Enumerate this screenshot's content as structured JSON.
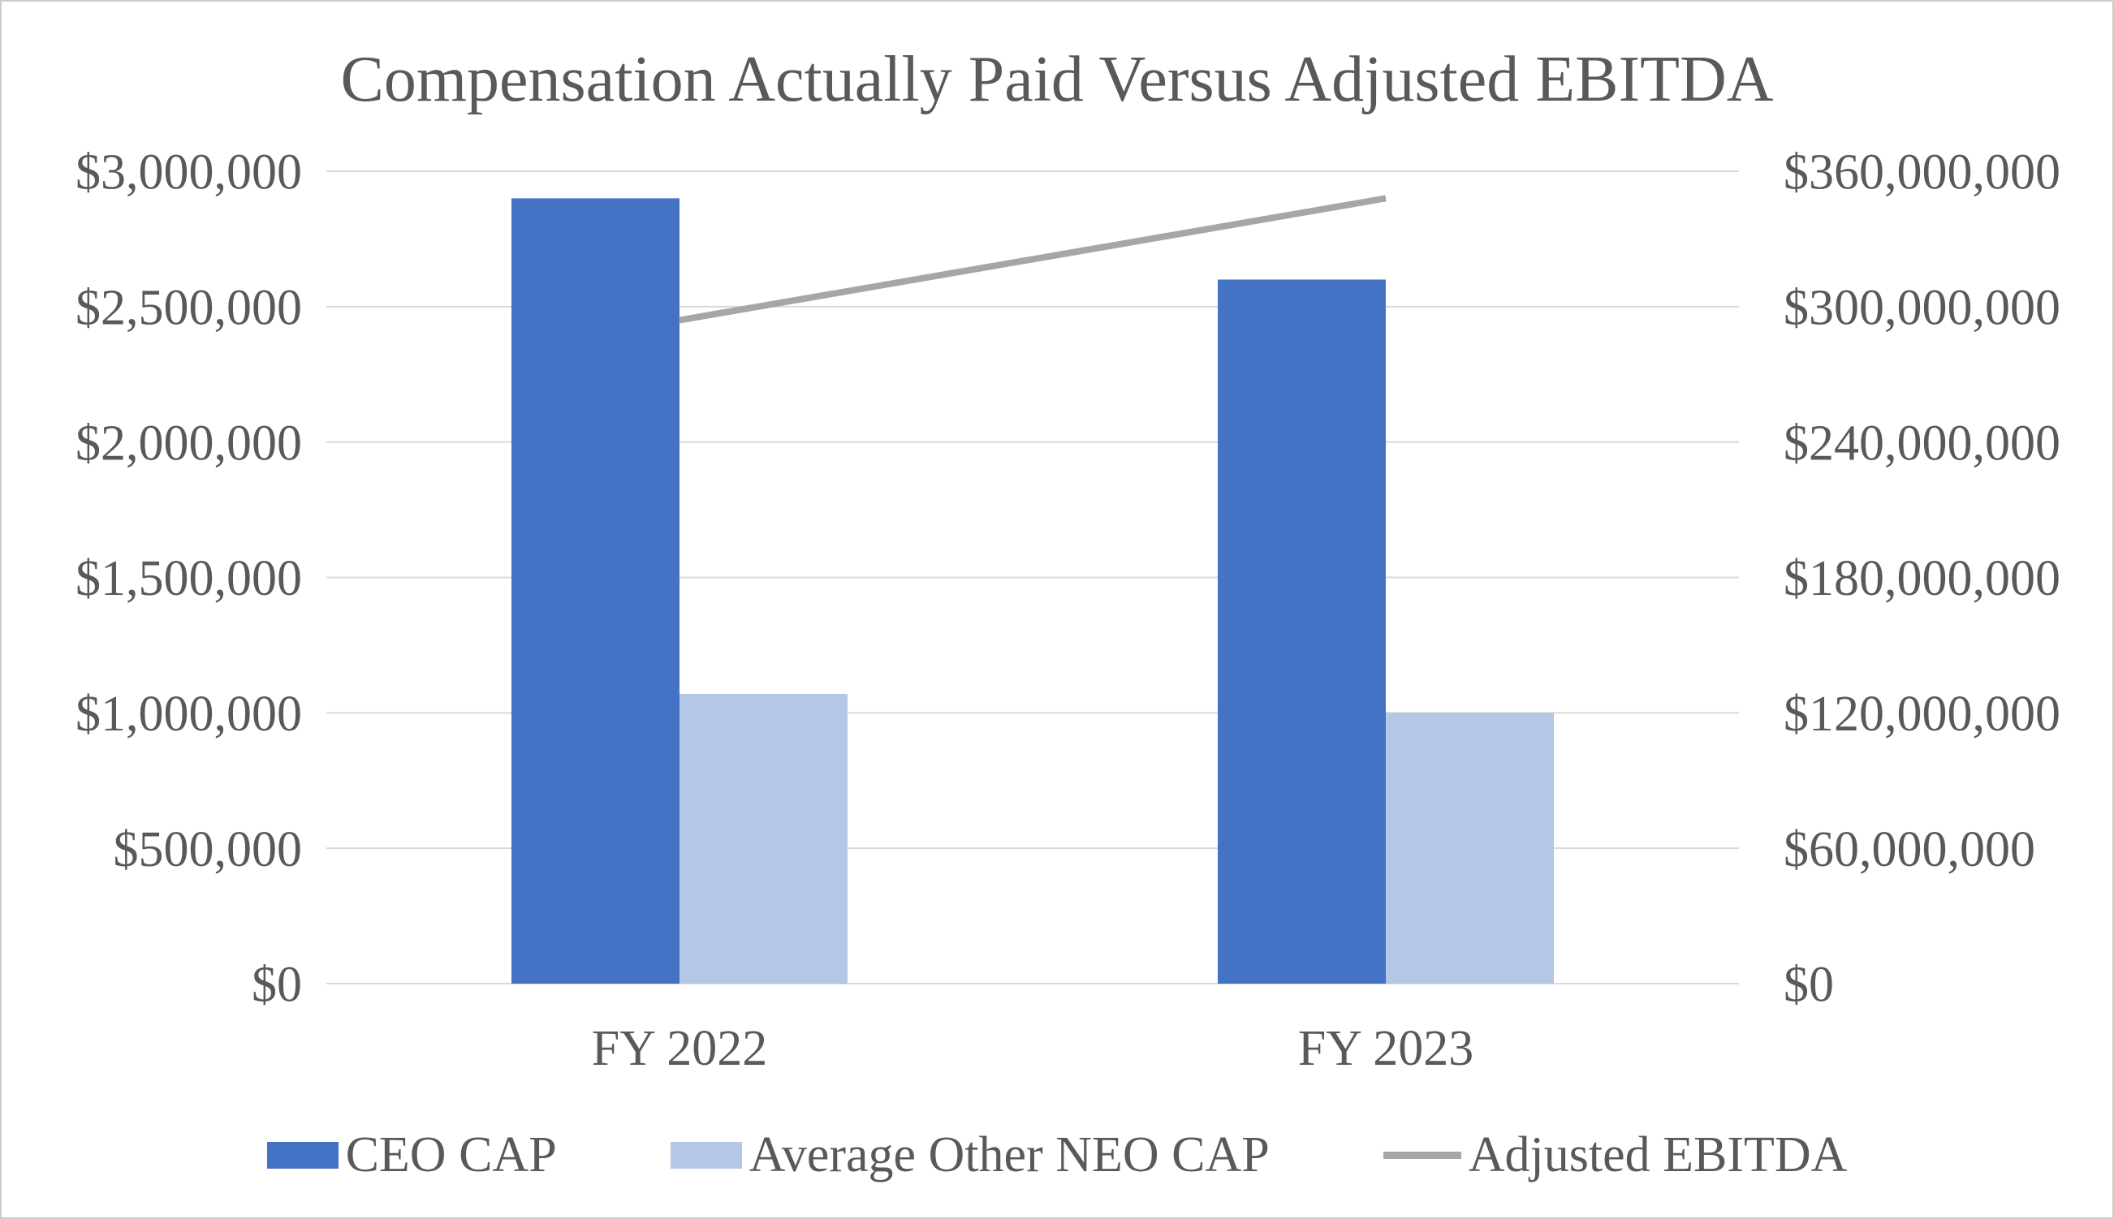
{
  "chart_data": {
    "type": "bar",
    "subtype": "combo-bar-line-dual-axis",
    "title": "Compensation Actually Paid Versus Adjusted EBITDA",
    "categories": [
      "FY 2022",
      "FY 2023"
    ],
    "series": [
      {
        "name": "CEO CAP",
        "type": "bar",
        "axis": "left",
        "color": "#4472C4",
        "values": [
          2900000,
          2600000
        ]
      },
      {
        "name": "Average Other NEO CAP",
        "type": "bar",
        "axis": "left",
        "color": "#B4C7E7",
        "values": [
          1070000,
          1000000
        ]
      },
      {
        "name": "Adjusted EBITDA",
        "type": "line",
        "axis": "right",
        "color": "#A6A6A6",
        "values": [
          294000000,
          348000000
        ]
      }
    ],
    "left_axis": {
      "min": 0,
      "max": 3000000,
      "tick_step": 500000,
      "tick_labels": [
        "$0",
        "$500,000",
        "$1,000,000",
        "$1,500,000",
        "$2,000,000",
        "$2,500,000",
        "$3,000,000"
      ]
    },
    "right_axis": {
      "min": 0,
      "max": 360000000,
      "tick_step": 60000000,
      "tick_labels": [
        "$0",
        "$60,000,000",
        "$120,000,000",
        "$180,000,000",
        "$240,000,000",
        "$300,000,000",
        "$360,000,000"
      ]
    },
    "grid": true,
    "legend_position": "bottom",
    "colors": {
      "grid": "#D9D9D9",
      "text": "#595959",
      "background": "#FFFFFF",
      "border": "#CBCBCB"
    }
  }
}
